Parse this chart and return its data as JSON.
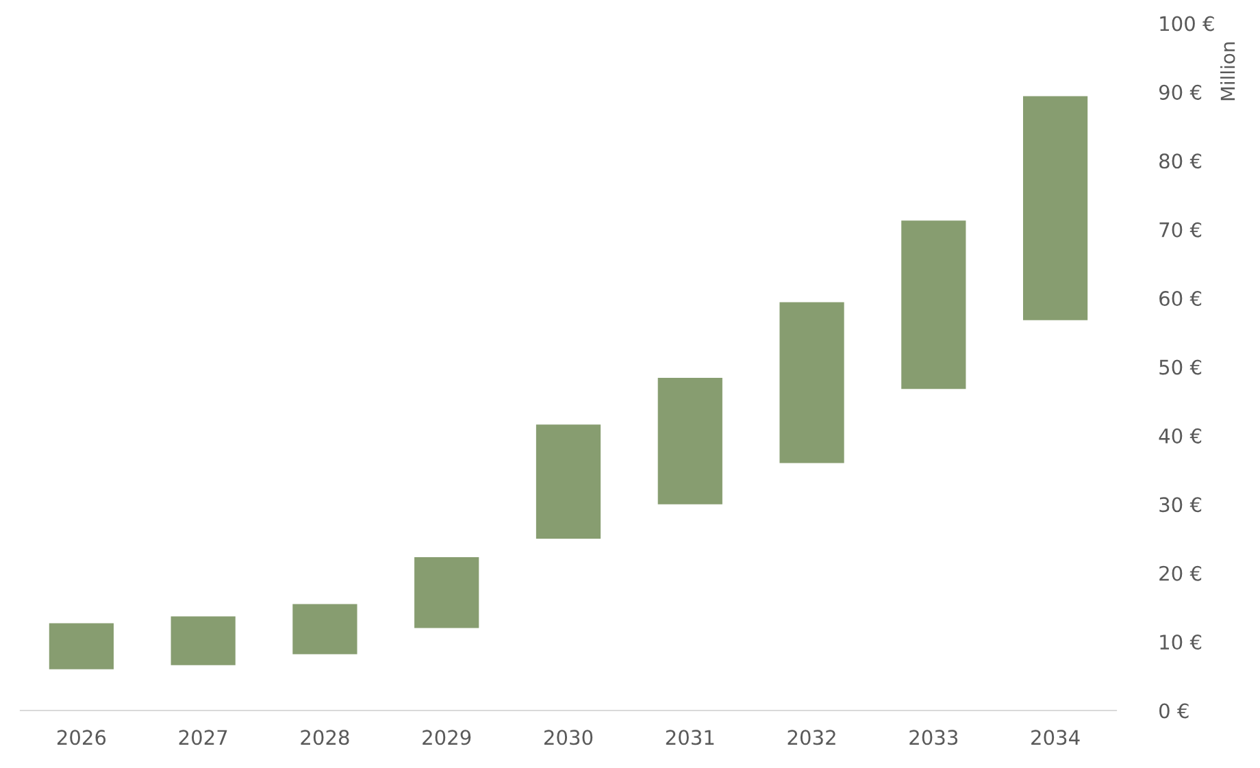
{
  "chart_data": {
    "type": "bar",
    "ylabel": "Million",
    "categories": [
      "2026",
      "2027",
      "2028",
      "2029",
      "2030",
      "2031",
      "2032",
      "2033",
      "2034"
    ],
    "base": [
      6.0,
      6.6,
      8.2,
      12.0,
      25.0,
      30.0,
      36.0,
      46.8,
      56.8
    ],
    "values": [
      6.7,
      7.1,
      7.3,
      10.3,
      16.6,
      18.4,
      23.4,
      24.5,
      32.6
    ],
    "color": "#879d70",
    "ylim": [
      0,
      100
    ],
    "yticks": [
      {
        "value": 0,
        "label": "0 €"
      },
      {
        "value": 10,
        "label": "10 €"
      },
      {
        "value": 20,
        "label": "20 €"
      },
      {
        "value": 30,
        "label": "30 €"
      },
      {
        "value": 40,
        "label": "40 €"
      },
      {
        "value": 50,
        "label": "50 €"
      },
      {
        "value": 60,
        "label": "60 €"
      },
      {
        "value": 70,
        "label": "70 €"
      },
      {
        "value": 80,
        "label": "80 €"
      },
      {
        "value": 90,
        "label": "90 €"
      },
      {
        "value": 100,
        "label": "100 €"
      }
    ],
    "grid": false,
    "legend": false
  }
}
